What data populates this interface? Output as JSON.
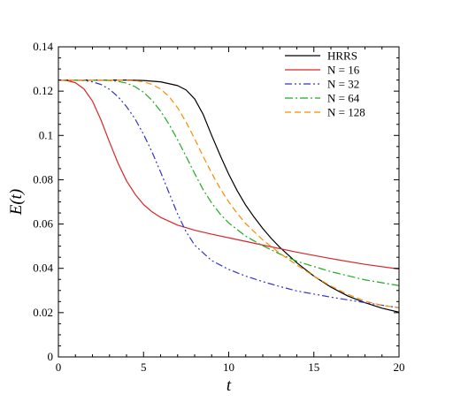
{
  "chart_data": {
    "type": "line",
    "title": "",
    "xlabel": "t",
    "ylabel": "E(t)",
    "xlim": [
      0,
      20
    ],
    "ylim": [
      0,
      0.14
    ],
    "xticks": [
      0,
      5,
      10,
      15,
      20
    ],
    "xtick_labels": [
      "0",
      "5",
      "10",
      "15",
      "20"
    ],
    "yticks": [
      0,
      0.02,
      0.04,
      0.06,
      0.08,
      0.1,
      0.12,
      0.14
    ],
    "ytick_labels": [
      "0",
      "0.02",
      "0.04",
      "0.06",
      "0.08",
      "0.1",
      "0.12",
      "0.14"
    ],
    "grid": false,
    "legend_position": "top-right",
    "series": [
      {
        "name": "HRRS",
        "color": "#000000",
        "dash": "solid",
        "x": [
          0,
          4,
          5,
          6,
          7,
          7.5,
          8,
          8.5,
          9,
          9.5,
          10,
          10.5,
          11,
          11.5,
          12,
          12.5,
          13,
          14,
          15,
          16,
          17,
          18,
          19,
          20
        ],
        "y": [
          0.125,
          0.125,
          0.1248,
          0.1242,
          0.1225,
          0.1205,
          0.1165,
          0.1095,
          0.1,
          0.091,
          0.0825,
          0.075,
          0.0685,
          0.063,
          0.058,
          0.0535,
          0.0495,
          0.0425,
          0.0365,
          0.0315,
          0.0275,
          0.0245,
          0.022,
          0.0202
        ]
      },
      {
        "name": "N = 16",
        "color": "#d62728",
        "dash": "solid",
        "x": [
          0,
          0.5,
          1,
          1.5,
          2,
          2.5,
          3,
          3.5,
          4,
          4.5,
          5,
          5.5,
          6,
          7,
          8,
          9,
          10,
          12,
          14,
          16,
          18,
          20
        ],
        "y": [
          0.125,
          0.1248,
          0.1238,
          0.121,
          0.1155,
          0.107,
          0.097,
          0.0875,
          0.0795,
          0.0735,
          0.0688,
          0.0655,
          0.063,
          0.0595,
          0.0572,
          0.0554,
          0.0538,
          0.0505,
          0.0473,
          0.0444,
          0.0418,
          0.0397
        ]
      },
      {
        "name": "N = 32",
        "color": "#3333cc",
        "dash": "dashdotdot",
        "x": [
          0,
          1,
          1.5,
          2,
          2.5,
          3,
          3.5,
          4,
          4.5,
          5,
          5.5,
          6,
          6.5,
          7,
          7.5,
          8,
          9,
          10,
          11,
          12,
          13,
          14,
          16,
          18,
          20
        ],
        "y": [
          0.125,
          0.125,
          0.1248,
          0.1242,
          0.123,
          0.1208,
          0.1175,
          0.113,
          0.1075,
          0.1005,
          0.0925,
          0.0835,
          0.074,
          0.0645,
          0.0565,
          0.0505,
          0.0435,
          0.0395,
          0.0365,
          0.034,
          0.0318,
          0.0298,
          0.027,
          0.0245,
          0.0222
        ]
      },
      {
        "name": "N = 64",
        "color": "#22aa22",
        "dash": "dashdot",
        "x": [
          0,
          2.5,
          3,
          3.5,
          4,
          4.5,
          5,
          5.5,
          6,
          6.5,
          7,
          7.5,
          8,
          8.5,
          9,
          9.5,
          10,
          11,
          12,
          13,
          14,
          16,
          18,
          20
        ],
        "y": [
          0.125,
          0.125,
          0.1248,
          0.1244,
          0.1236,
          0.122,
          0.1195,
          0.1158,
          0.111,
          0.105,
          0.098,
          0.0905,
          0.0828,
          0.0755,
          0.0695,
          0.0645,
          0.0605,
          0.0545,
          0.0502,
          0.0465,
          0.0432,
          0.0385,
          0.0348,
          0.0322
        ]
      },
      {
        "name": "N = 128",
        "color": "#ff8800",
        "dash": "dashed",
        "x": [
          0,
          3.5,
          4,
          4.5,
          5,
          5.5,
          6,
          6.5,
          7,
          7.5,
          8,
          8.5,
          9,
          9.5,
          10,
          10.5,
          11,
          12,
          13,
          14,
          15,
          16,
          17,
          18,
          19,
          20
        ],
        "y": [
          0.125,
          0.125,
          0.1249,
          0.1247,
          0.1242,
          0.123,
          0.121,
          0.1175,
          0.1125,
          0.106,
          0.0985,
          0.0905,
          0.083,
          0.076,
          0.07,
          0.0648,
          0.0602,
          0.0528,
          0.0468,
          0.0415,
          0.0365,
          0.032,
          0.0282,
          0.0252,
          0.0233,
          0.0222
        ]
      }
    ]
  }
}
